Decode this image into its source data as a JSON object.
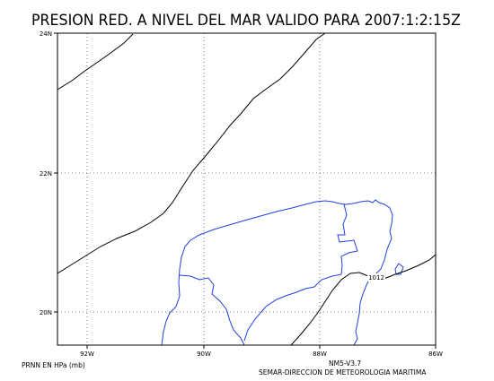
{
  "map": {
    "title": "PRESION RED. A NIVEL DEL MAR VALIDO PARA 2007:1:2:15Z",
    "lat_labels": [
      "24N",
      "22N",
      "20N"
    ],
    "lon_labels": [
      "92W",
      "90W",
      "88W",
      "86W"
    ],
    "lat_range": [
      19.5,
      24
    ],
    "lon_range": [
      -92.5,
      -86
    ],
    "gridlines": "dotted",
    "isobar_label": "1012",
    "colors": {
      "coastline": "#2040e0",
      "isobars": "#000000",
      "frame": "#000000"
    }
  },
  "footer": {
    "units_label": "PRNN EN HPa (mb)",
    "model_label": "NM5-V3.7",
    "agency_label": "SEMAR-DIRECCION DE METEOROLOGIA MARITIMA"
  }
}
